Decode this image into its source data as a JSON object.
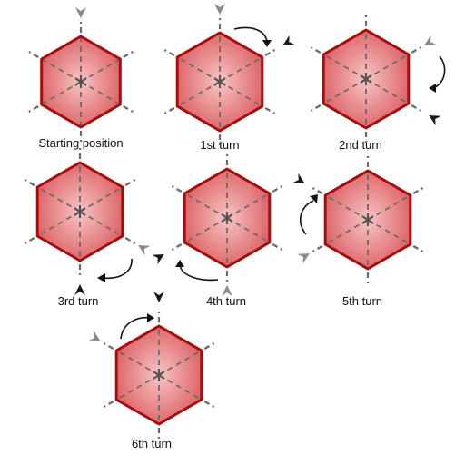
{
  "colors": {
    "hex_fill_center": "#f8c4c4",
    "hex_fill_edge": "#d9575b",
    "hex_stroke": "#a80c0c",
    "dash": "#6b6b6b",
    "marker_gray": "#8a8a8a",
    "marker_dark": "#1a1a1a",
    "curve": "#111111"
  },
  "panels": [
    {
      "id": "start",
      "caption": "Starting position",
      "rotation_deg": 0,
      "marker_color": "gray"
    },
    {
      "id": "t1",
      "caption": "1st  turn",
      "rotation_deg": 0,
      "marker_color": "gray"
    },
    {
      "id": "t2",
      "caption": "2nd turn",
      "rotation_deg": 60,
      "marker_color": "gray"
    },
    {
      "id": "t3",
      "caption": "3rd turn",
      "rotation_deg": 0,
      "marker_color": "gray"
    },
    {
      "id": "t4",
      "caption": "4th turn",
      "rotation_deg": 0,
      "marker_color": "gray"
    },
    {
      "id": "t5",
      "caption": "5th turn",
      "rotation_deg": 0,
      "marker_color": "gray"
    },
    {
      "id": "t6",
      "caption": "6th turn",
      "rotation_deg": 0,
      "marker_color": "gray"
    }
  ]
}
